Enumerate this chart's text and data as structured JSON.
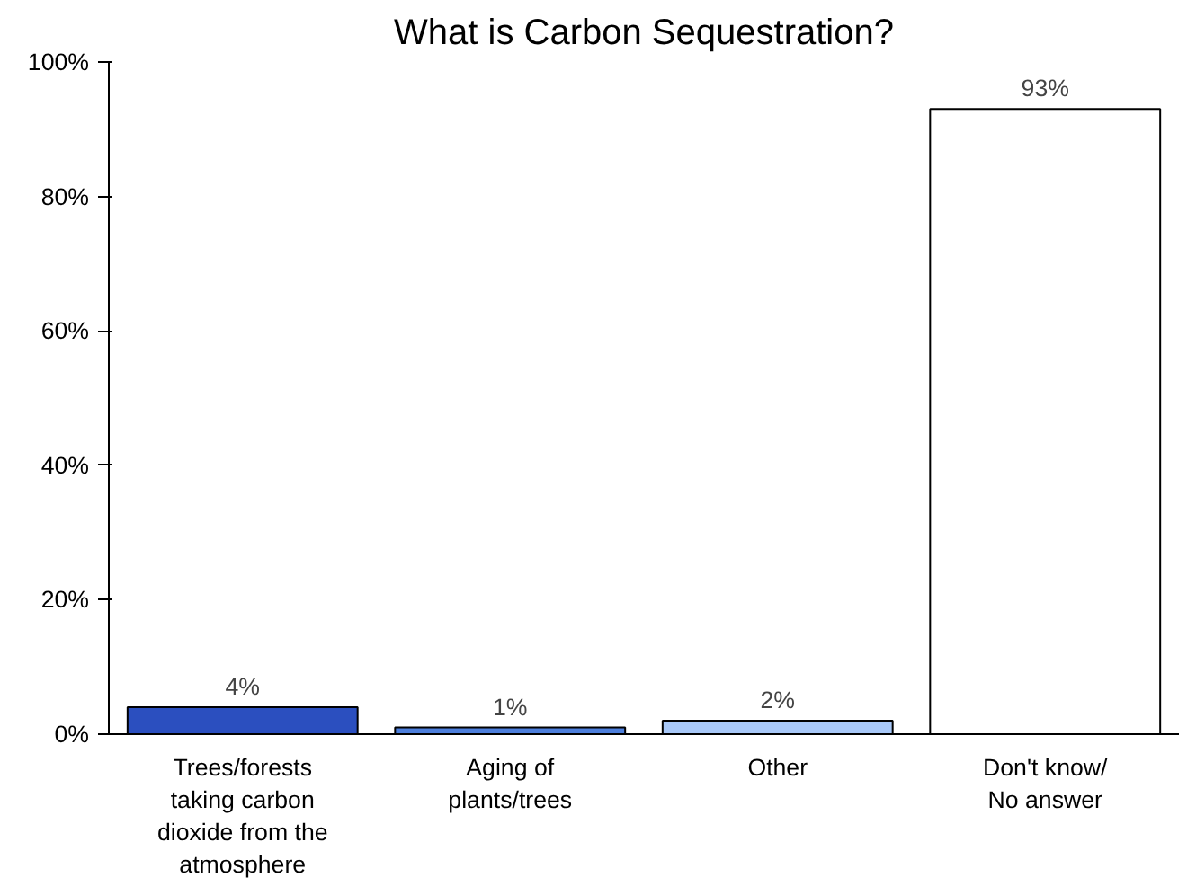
{
  "chart_data": {
    "type": "bar",
    "title": "What is Carbon Sequestration?",
    "categories": [
      "Trees/forests\ntaking carbon\ndioxide from the\natmosphere",
      "Aging of\nplants/trees",
      "Other",
      "Don't know/\nNo answer"
    ],
    "values": [
      4,
      1,
      2,
      93
    ],
    "colors": [
      "#2b4fbf",
      "#4d7fdc",
      "#a8c8f8",
      "#ffffff"
    ],
    "ylim": [
      0,
      100
    ],
    "yticks": [
      {
        "value": 0,
        "label": "0%"
      },
      {
        "value": 20,
        "label": "20%"
      },
      {
        "value": 40,
        "label": "40%"
      },
      {
        "value": 60,
        "label": "60%"
      },
      {
        "value": 80,
        "label": "80%"
      },
      {
        "value": 100,
        "label": "100%"
      }
    ],
    "value_labels": [
      "4%",
      "1%",
      "2%",
      "93%"
    ],
    "grid": false
  }
}
